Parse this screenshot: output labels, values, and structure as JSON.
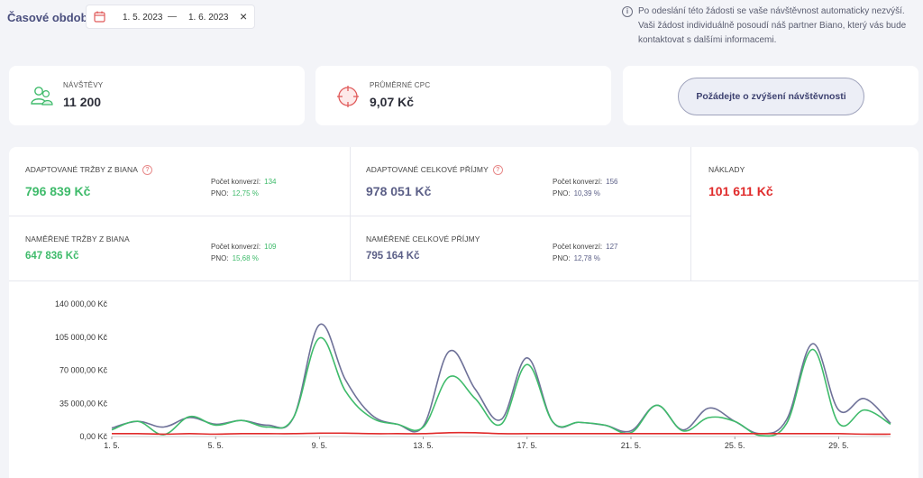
{
  "period": {
    "label": "Časové období",
    "from": "1. 5. 2023",
    "separator": "—",
    "to": "1. 6. 2023",
    "clear": "×"
  },
  "info": {
    "icon": "i",
    "text": "Po odeslání této žádosti se vaše návštěvnost automaticky nezvýší. Vaši žádost individuálně posoudí náš partner Biano, který vás bude kontaktovat s dalšími informacemi."
  },
  "cards": {
    "visits": {
      "label": "NÁVŠTĚVY",
      "value": "11 200"
    },
    "cpc": {
      "label": "PRŮMĚRNÉ CPC",
      "value": "9,07 Kč"
    },
    "cta": "Požádejte o zvýšení návštěvnosti"
  },
  "metrics": {
    "adapted_biano": {
      "label": "ADAPTOVANÉ TRŽBY Z BIANA",
      "value": "796 839 Kč",
      "conv_label": "Počet konverzí:",
      "conv": "134",
      "pno_label": "PNO:",
      "pno": "12,75 %"
    },
    "adapted_total": {
      "label": "ADAPTOVANÉ CELKOVÉ PŘÍJMY",
      "value": "978 051 Kč",
      "conv_label": "Počet konverzí:",
      "conv": "156",
      "pno_label": "PNO:",
      "pno": "10,39 %"
    },
    "costs": {
      "label": "NÁKLADY",
      "value": "101 611 Kč"
    },
    "measured_biano": {
      "label": "NAMĚŘENÉ TRŽBY Z BIANA",
      "value": "647 836 Kč",
      "conv_label": "Počet konverzí:",
      "conv": "109",
      "pno_label": "PNO:",
      "pno": "15,68 %"
    },
    "measured_total": {
      "label": "NAMĚŘENÉ CELKOVÉ PŘÍJMY",
      "value": "795 164 Kč",
      "conv_label": "Počet konverzí:",
      "conv": "127",
      "pno_label": "PNO:",
      "pno": "12,78 %"
    }
  },
  "colors": {
    "green": "#3fbb6b",
    "slate": "#6e7198",
    "red": "#e02b2b"
  },
  "chart_data": {
    "type": "line",
    "x": [
      "1. 5.",
      "2. 5.",
      "3. 5.",
      "4. 5.",
      "5. 5.",
      "6. 5.",
      "7. 5.",
      "8. 5.",
      "9. 5.",
      "10. 5.",
      "11. 5.",
      "12. 5.",
      "13. 5.",
      "14. 5.",
      "15. 5.",
      "16. 5.",
      "17. 5.",
      "18. 5.",
      "19. 5.",
      "20. 5.",
      "21. 5.",
      "22. 5.",
      "23. 5.",
      "24. 5.",
      "25. 5.",
      "26. 5.",
      "27. 5.",
      "28. 5.",
      "29. 5.",
      "30. 5.",
      "31. 5."
    ],
    "x_ticks": [
      "1. 5.",
      "5. 5.",
      "9. 5.",
      "13. 5.",
      "17. 5.",
      "21. 5.",
      "25. 5.",
      "29. 5."
    ],
    "y_ticks": [
      "0,00 Kč",
      "35 000,00 Kč",
      "70 000,00 Kč",
      "105 000,00 Kč",
      "140 000,00 Kč"
    ],
    "ylim": [
      0,
      140000
    ],
    "series": [
      {
        "color": "#6e7198",
        "values": [
          9000,
          16000,
          10000,
          20000,
          13000,
          17000,
          12000,
          20000,
          118000,
          60000,
          23000,
          13000,
          11000,
          90000,
          50000,
          18000,
          83000,
          15000,
          15000,
          12000,
          6000,
          33000,
          7000,
          30000,
          16000,
          3000,
          18000,
          98000,
          28000,
          40000,
          14000
        ]
      },
      {
        "color": "#3fbb6b",
        "values": [
          7000,
          16000,
          2000,
          21000,
          12000,
          17000,
          10000,
          20000,
          104000,
          48000,
          20000,
          13000,
          10000,
          63000,
          40000,
          13000,
          76000,
          15000,
          15000,
          12000,
          4000,
          33000,
          6000,
          20000,
          16000,
          1000,
          14000,
          92000,
          14000,
          28000,
          13000
        ]
      },
      {
        "color": "#e02b2b",
        "values": [
          3000,
          3000,
          2500,
          3000,
          2500,
          3000,
          3000,
          3000,
          3500,
          3500,
          3000,
          3000,
          3000,
          4000,
          4000,
          3000,
          3000,
          3000,
          3000,
          3000,
          3000,
          3000,
          3000,
          3000,
          3000,
          3000,
          3000,
          3000,
          3000,
          2500,
          2500
        ]
      }
    ]
  }
}
